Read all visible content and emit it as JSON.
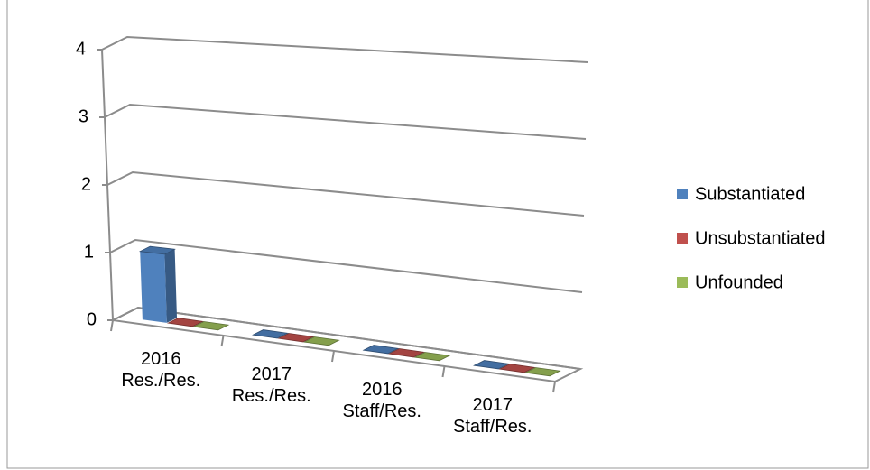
{
  "chart_data": {
    "type": "bar3d",
    "categories": [
      "2016\nRes./Res.",
      "2017\nRes./Res.",
      "2016\nStaff/Res.",
      "2017\nStaff/Res."
    ],
    "series": [
      {
        "name": "Substantiated",
        "color": "#4f81bd",
        "values": [
          1,
          0,
          0,
          0
        ]
      },
      {
        "name": "Unsubstantiated",
        "color": "#c0504d",
        "values": [
          0,
          0,
          0,
          0
        ]
      },
      {
        "name": "Unfounded",
        "color": "#9bbb59",
        "values": [
          0,
          0,
          0,
          0
        ]
      }
    ],
    "ylim": [
      0,
      4
    ],
    "yticks": [
      0,
      1,
      2,
      3,
      4
    ],
    "grid": true,
    "legend": "right"
  }
}
